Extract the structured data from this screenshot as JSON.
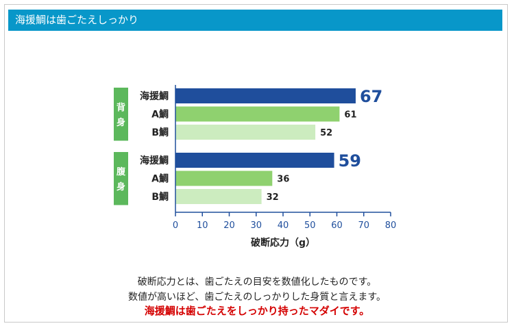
{
  "header": {
    "title": "海援鯛は歯ごたえしっかり"
  },
  "colors": {
    "header_bg": "#0897c9",
    "group_bg": "#5cb85c",
    "kaien": "#1f4e9c",
    "a_tai": "#8fd16f",
    "b_tai": "#ccecbf",
    "axis": "#1f4e9c",
    "kaien_label": "#1f4e9c"
  },
  "chart_data": {
    "type": "bar",
    "orientation": "horizontal",
    "xlabel": "破断応力（g）",
    "xlim": [
      0,
      80
    ],
    "xticks": [
      0,
      10,
      20,
      30,
      40,
      50,
      60,
      70,
      80
    ],
    "groups": [
      {
        "label": "背身",
        "bars": [
          {
            "category": "海援鯛",
            "value": 67,
            "label": "67"
          },
          {
            "category": "A鯛",
            "value": 61,
            "label": "61"
          },
          {
            "category": "B鯛",
            "value": 52,
            "label": "52"
          }
        ]
      },
      {
        "label": "腹身",
        "bars": [
          {
            "category": "海援鯛",
            "value": 59,
            "label": "59"
          },
          {
            "category": "A鯛",
            "value": 36,
            "label": "36"
          },
          {
            "category": "B鯛",
            "value": 32,
            "label": "32"
          }
        ]
      }
    ]
  },
  "caption": {
    "line1": "破断応力とは、歯ごたえの目安を数値化したものです。",
    "line2": "数値が高いほど、歯ごたえのしっかりした身質と言えます。",
    "line3": "海援鯛は歯ごたえをしっかり持ったマダイです。"
  }
}
